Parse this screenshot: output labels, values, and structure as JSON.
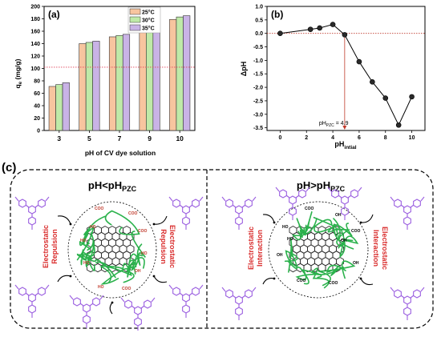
{
  "chart_data": [
    {
      "type": "bar",
      "panel_label": "(a)",
      "xlabel": "pH of CV dye solution",
      "ylabel_main": "q",
      "ylabel_sub": "e",
      "ylabel_unit": " (mg/g)",
      "ylim": [
        0,
        200
      ],
      "yticks": [
        0,
        20,
        40,
        60,
        80,
        100,
        120,
        140,
        160,
        180,
        200
      ],
      "categories": [
        "3",
        "5",
        "7",
        "9",
        "10"
      ],
      "series": [
        {
          "name": "25°C",
          "color": "#f7c59f",
          "values": [
            71,
            140,
            151,
            166,
            179
          ]
        },
        {
          "name": "30°C",
          "color": "#bfeaa8",
          "values": [
            74,
            142,
            153,
            169,
            183
          ]
        },
        {
          "name": "35°C",
          "color": "#c9b3e6",
          "values": [
            77,
            144,
            155,
            172,
            185
          ]
        }
      ],
      "reference_line_y": 102,
      "legend_position": "top-right"
    },
    {
      "type": "line",
      "panel_label": "(b)",
      "xlabel_main": "pH",
      "xlabel_sub": "intial",
      "ylabel": "ΔpH",
      "xlim": [
        -1,
        11
      ],
      "ylim": [
        -3.6,
        1.0
      ],
      "xticks": [
        0,
        2,
        4,
        6,
        8,
        10
      ],
      "yticks": [
        1.0,
        0.5,
        0.0,
        -0.5,
        -1.0,
        -1.5,
        -2.0,
        -2.5,
        -3.0,
        -3.5
      ],
      "x": [
        0,
        2.3,
        3.0,
        4.0,
        4.9,
        6.0,
        7.0,
        8.0,
        9.0,
        10.0
      ],
      "y": [
        0.0,
        0.15,
        0.2,
        0.33,
        -0.05,
        -1.05,
        -1.8,
        -2.4,
        -3.4,
        -2.35
      ],
      "annotation_main": "pH",
      "annotation_sub": "PZC",
      "annotation_value": " = 4.9",
      "pzc": 4.9
    }
  ],
  "panel_c": {
    "label": "(c)",
    "left_title_main": "pH<pH",
    "left_title_sub": "PZC",
    "right_title_main": "pH>pH",
    "right_title_sub": "PZC",
    "left_label_a": "Electrostatic",
    "left_label_b": "Repulsion",
    "right_label_a": "Electrostatic",
    "right_label_b": "Interaction",
    "group_coo": "COO",
    "group_oh": "OH",
    "group_ho": "HO",
    "colors": {
      "dye": "#9b5fe0",
      "graphene": "#2f2f2f",
      "polymer": "#2bb24c",
      "label": "#d92b2b"
    }
  }
}
